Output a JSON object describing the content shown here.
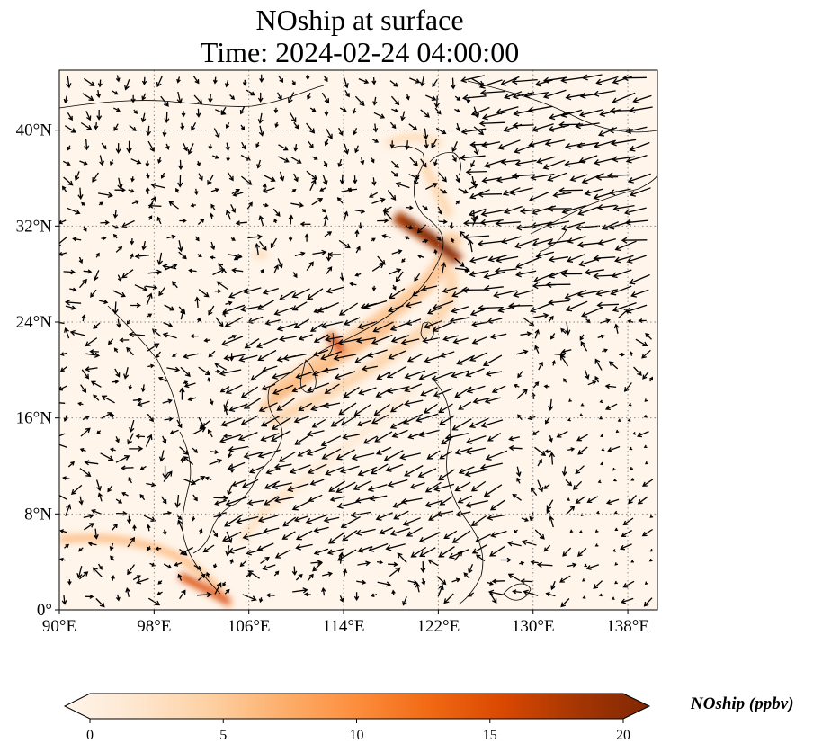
{
  "title": {
    "line1": "NOship at surface",
    "line2": "Time: 2024-02-24 04:00:00"
  },
  "map": {
    "lon_range": [
      90,
      140.5
    ],
    "lat_range": [
      0,
      45
    ],
    "x_ticks": [
      {
        "value": 90,
        "label": "90°E"
      },
      {
        "value": 98,
        "label": "98°E"
      },
      {
        "value": 106,
        "label": "106°E"
      },
      {
        "value": 114,
        "label": "114°E"
      },
      {
        "value": 122,
        "label": "122°E"
      },
      {
        "value": 130,
        "label": "130°E"
      },
      {
        "value": 138,
        "label": "138°E"
      }
    ],
    "y_ticks": [
      {
        "value": 0,
        "label": "0°"
      },
      {
        "value": 8,
        "label": "8°N"
      },
      {
        "value": 16,
        "label": "16°N"
      },
      {
        "value": 24,
        "label": "24°N"
      },
      {
        "value": 32,
        "label": "32°N"
      },
      {
        "value": 40,
        "label": "40°N"
      }
    ],
    "colors": {
      "background": "#fff5ea",
      "grid": "#888888",
      "coast": "#000000",
      "arrow": "#000000"
    }
  },
  "colorbar": {
    "title": "NOship (ppbv)",
    "min": 0,
    "max": 20,
    "ticks": [
      {
        "value": 0,
        "label": "0"
      },
      {
        "value": 5,
        "label": "5"
      },
      {
        "value": 10,
        "label": "10"
      },
      {
        "value": 15,
        "label": "15"
      },
      {
        "value": 20,
        "label": "20"
      }
    ],
    "stops": [
      "#fff5eb",
      "#fee6ce",
      "#fdd0a2",
      "#fdae6b",
      "#fd8d3c",
      "#f16913",
      "#d94801",
      "#a63603",
      "#7f2704"
    ]
  }
}
